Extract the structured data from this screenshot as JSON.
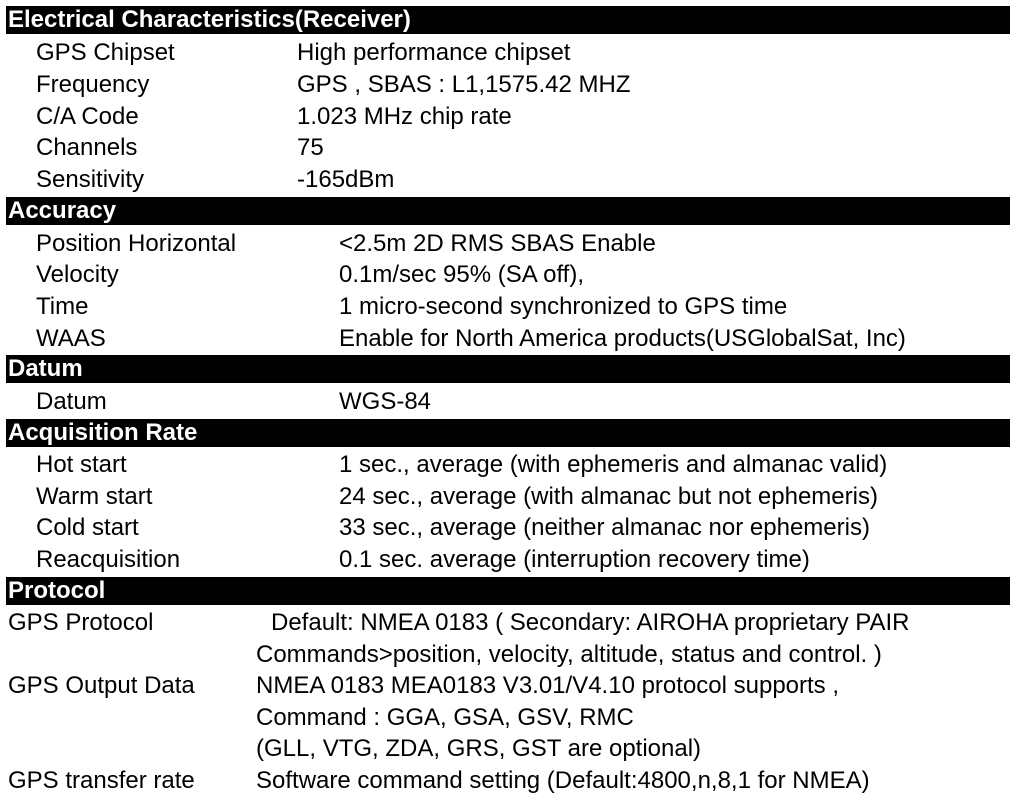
{
  "sections": {
    "electrical": {
      "title": "Electrical Characteristics(Receiver)",
      "rows": [
        {
          "label": "GPS Chipset",
          "value": "High performance chipset"
        },
        {
          "label": "Frequency",
          "value": "GPS , SBAS : L1,1575.42 MHZ"
        },
        {
          "label": "C/A Code",
          "value": "1.023 MHz chip rate"
        },
        {
          "label": "Channels",
          "value": "75"
        },
        {
          "label": "Sensitivity",
          "value": "-165dBm"
        }
      ]
    },
    "accuracy": {
      "title": "Accuracy",
      "rows": [
        {
          "label": "Position Horizontal",
          "value": "<2.5m 2D RMS SBAS Enable"
        },
        {
          "label": "Velocity",
          "value": "0.1m/sec 95% (SA off),"
        },
        {
          "label": "Time",
          "value": "1 micro-second synchronized to GPS time"
        },
        {
          "label": "WAAS",
          "value": "Enable for North America products(USGlobalSat, Inc)"
        }
      ]
    },
    "datum": {
      "title": "Datum",
      "rows": [
        {
          "label": "Datum",
          "value": "WGS-84"
        }
      ]
    },
    "acquisition": {
      "title": "Acquisition Rate",
      "rows": [
        {
          "label": "Hot start",
          "value": "1 sec., average (with ephemeris and almanac valid)"
        },
        {
          "label": "Warm start",
          "value": "24 sec., average (with almanac but not ephemeris)"
        },
        {
          "label": "Cold start",
          "value": "33 sec., average (neither almanac nor ephemeris)"
        },
        {
          "label": "Reacquisition",
          "value": "0.1 sec. average (interruption recovery time)"
        }
      ]
    },
    "protocol": {
      "title": "Protocol",
      "gps_protocol": {
        "label": "GPS Protocol",
        "line1": "Default: NMEA 0183 ( Secondary: AIROHA proprietary PAIR",
        "line2": "Commands>position, velocity, altitude, status and control. )"
      },
      "gps_output": {
        "label": "GPS Output Data",
        "line1": "NMEA 0183 MEA0183 V3.01/V4.10 protocol supports ,",
        "line2": "Command : GGA, GSA, GSV, RMC",
        "line3": "(GLL, VTG, ZDA, GRS, GST are optional)"
      },
      "gps_transfer": {
        "label": "GPS transfer rate",
        "value": "Software command setting (Default:4800,n,8,1 for NMEA)"
      }
    }
  }
}
